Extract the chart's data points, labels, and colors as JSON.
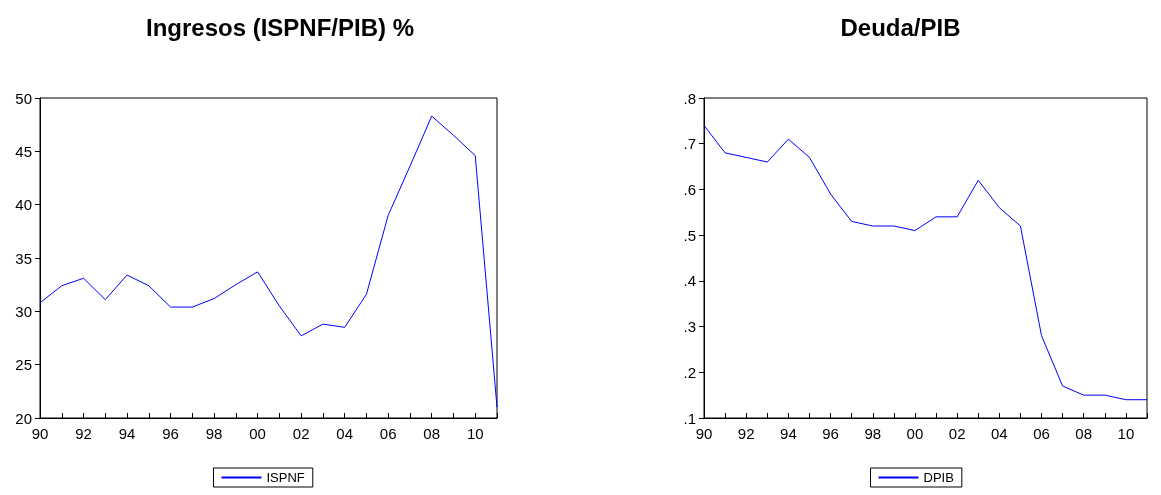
{
  "chart_data": [
    {
      "type": "line",
      "title": "Ingresos (ISPNF/PIB) %",
      "categories": [
        "90",
        null,
        "92",
        null,
        "94",
        null,
        "96",
        null,
        "98",
        null,
        "00",
        null,
        "02",
        null,
        "04",
        null,
        "06",
        null,
        "08",
        null,
        "10",
        null
      ],
      "series": [
        {
          "name": "ISPNF",
          "color": "#0000ff",
          "values": [
            30.8,
            32.4,
            33.1,
            31.1,
            33.4,
            32.4,
            30.4,
            30.4,
            31.2,
            32.5,
            33.7,
            30.5,
            27.7,
            28.8,
            28.5,
            31.6,
            39.0,
            43.6,
            48.3,
            46.5,
            44.6,
            21.0
          ]
        }
      ],
      "ylim": [
        20,
        50
      ],
      "yticks": [
        20,
        25,
        30,
        35,
        40,
        45,
        50
      ],
      "grid": false,
      "legend": "bottom",
      "marker": "none",
      "line_style": "solid"
    },
    {
      "type": "line",
      "title": "Deuda/PIB",
      "categories": [
        "90",
        null,
        "92",
        null,
        "94",
        null,
        "96",
        null,
        "98",
        null,
        "00",
        null,
        "02",
        null,
        "04",
        null,
        "06",
        null,
        "08",
        null,
        "10",
        null
      ],
      "series": [
        {
          "name": "DPIB",
          "color": "#0000ff",
          "values": [
            0.74,
            0.68,
            0.67,
            0.66,
            0.71,
            0.67,
            0.59,
            0.53,
            0.52,
            0.52,
            0.51,
            0.54,
            0.54,
            0.62,
            0.56,
            0.52,
            0.28,
            0.17,
            0.15,
            0.15,
            0.14,
            0.14
          ]
        }
      ],
      "ylim": [
        0.1,
        0.8
      ],
      "yticks": [
        {
          "value": 0.1,
          "label": ".1"
        },
        {
          "value": 0.2,
          "label": ".2"
        },
        {
          "value": 0.3,
          "label": ".3"
        },
        {
          "value": 0.4,
          "label": ".4"
        },
        {
          "value": 0.5,
          "label": ".5"
        },
        {
          "value": 0.6,
          "label": ".6"
        },
        {
          "value": 0.7,
          "label": ".7"
        },
        {
          "value": 0.8,
          "label": ".8"
        }
      ],
      "grid": false,
      "legend": "bottom",
      "marker": "none",
      "line_style": "solid"
    }
  ]
}
